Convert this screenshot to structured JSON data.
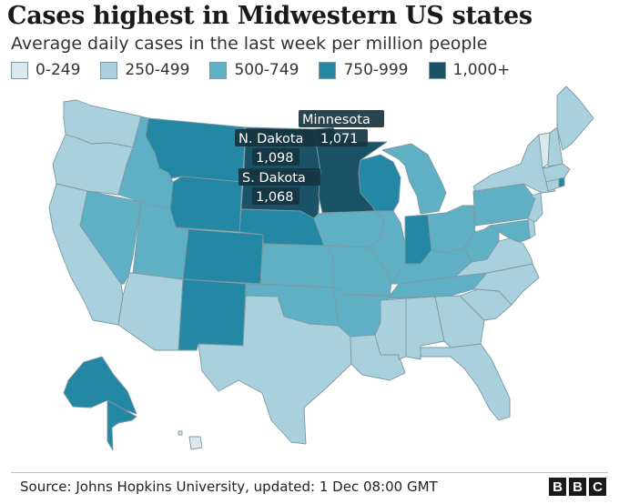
{
  "title": "Cases highest in Midwestern US states",
  "subtitle": "Average daily cases in the last week per million people",
  "legend": [
    {
      "label": "0-249",
      "color": "#dbe8ee"
    },
    {
      "label": "250-499",
      "color": "#a8d1dd"
    },
    {
      "label": "500-749",
      "color": "#5fb0c5"
    },
    {
      "label": "750-999",
      "color": "#2487a3"
    },
    {
      "label": "1,000+",
      "color": "#1b5366"
    }
  ],
  "annotations": {
    "minnesota": "Minnesota",
    "north_dakota": "N. Dakota",
    "minnesota_value": "1,071",
    "north_dakota_value": "1,098",
    "south_dakota": "S. Dakota",
    "south_dakota_value": "1,068"
  },
  "source": "Source: Johns Hopkins University, updated: 1 Dec 08:00 GMT",
  "brand": [
    "B",
    "B",
    "C"
  ],
  "state_bands": {
    "washington": "250-499",
    "oregon": "250-499",
    "california": "250-499",
    "nevada": "500-749",
    "idaho": "500-749",
    "montana": "750-999",
    "wyoming": "750-999",
    "utah": "500-749",
    "arizona": "250-499",
    "colorado": "750-999",
    "new-mexico": "750-999",
    "north-dakota": "1,000+",
    "south-dakota": "1,000+",
    "nebraska": "750-999",
    "kansas": "500-749",
    "oklahoma": "500-749",
    "texas": "250-499",
    "minnesota": "1,000+",
    "iowa": "500-749",
    "missouri": "500-749",
    "arkansas": "500-749",
    "louisiana": "250-499",
    "wisconsin": "750-999",
    "illinois": "500-749",
    "michigan": "500-749",
    "indiana": "750-999",
    "ohio": "500-749",
    "kentucky": "500-749",
    "tennessee": "500-749",
    "mississippi": "250-499",
    "alabama": "250-499",
    "georgia": "250-499",
    "florida": "250-499",
    "south-carolina": "250-499",
    "north-carolina": "250-499",
    "virginia": "250-499",
    "west-virginia": "500-749",
    "pennsylvania": "500-749",
    "new-york": "250-499",
    "vermont": "0-249",
    "new-hampshire": "250-499",
    "maine": "250-499",
    "massachusetts": "250-499",
    "rhode-island": "750-999",
    "connecticut": "250-499",
    "new-jersey": "250-499",
    "delaware": "250-499",
    "maryland": "500-749",
    "alaska": "750-999",
    "hawaii": "0-249"
  }
}
